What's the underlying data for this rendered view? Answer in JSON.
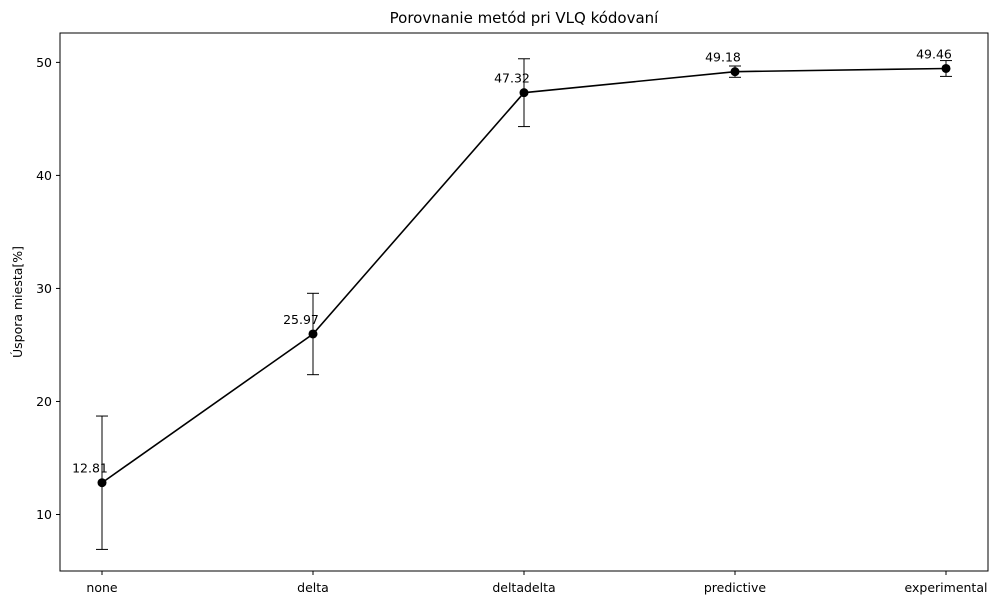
{
  "chart_data": {
    "type": "line",
    "title": "Porovnanie metód pri VLQ kódovaní",
    "xlabel": "",
    "ylabel": "Úspora miesta[%]",
    "categories": [
      "none",
      "delta",
      "deltadelta",
      "predictive",
      "experimental"
    ],
    "series": [
      {
        "values": [
          12.81,
          25.97,
          47.32,
          49.18,
          49.46
        ],
        "errors": [
          5.9,
          3.6,
          3.0,
          0.5,
          0.7
        ],
        "color": "#000000"
      }
    ],
    "data_labels": [
      "12.81",
      "25.97",
      "47.32",
      "49.18",
      "49.46"
    ],
    "ylim": [
      5.0,
      52.6
    ],
    "yticks": [
      10,
      20,
      30,
      40,
      50
    ],
    "grid": false
  }
}
